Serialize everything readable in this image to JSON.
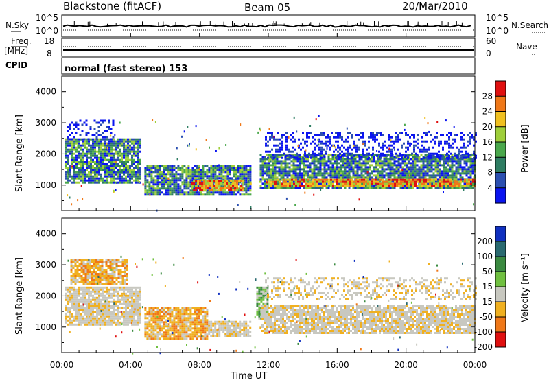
{
  "header": {
    "station": "Blackstone (fitACF)",
    "beam": "Beam 05",
    "date": "20/Mar/2010"
  },
  "nsky_panel": {
    "left_label": "N.Sky",
    "left_ticks": [
      "10^5",
      "10^0"
    ],
    "right_ticks": [
      "10^5",
      "10^0"
    ],
    "right_label": "N.Search"
  },
  "freq_panel": {
    "left_label_top": "Freq.",
    "left_label_unit": "[MHz]",
    "left_ticks": [
      "18",
      "8"
    ],
    "right_ticks": [
      "60",
      "0"
    ],
    "right_label": "Nave"
  },
  "cpid_panel": {
    "label": "CPID",
    "text": "normal (fast stereo) 153"
  },
  "x_axis": {
    "label": "Time UT",
    "ticks": [
      "00:00",
      "04:00",
      "08:00",
      "12:00",
      "16:00",
      "20:00",
      "00:00"
    ]
  },
  "chart_data": [
    {
      "type": "heatmap",
      "name": "power",
      "ylabel": "Slant Range [km]",
      "yticks": [
        "1000",
        "2000",
        "3000",
        "4000"
      ],
      "ylim": [
        180,
        4500
      ],
      "xlim": [
        0,
        24
      ],
      "colorbar": {
        "label": "Power [dB]",
        "ticks": [
          "4",
          "8",
          "12",
          "16",
          "20",
          "24",
          "28"
        ],
        "colors": [
          "#0a14f0",
          "#2b4fb0",
          "#2e7d62",
          "#4aa84c",
          "#9fcf3a",
          "#f0c020",
          "#f07818",
          "#e01010"
        ]
      },
      "regions": [
        {
          "t0": 0.2,
          "t1": 4.6,
          "r0": 1100,
          "r1": 2500,
          "level": "mid"
        },
        {
          "t0": 0.3,
          "t1": 3.0,
          "r0": 2500,
          "r1": 3100,
          "level": "low"
        },
        {
          "t0": 4.8,
          "t1": 11.0,
          "r0": 700,
          "r1": 1650,
          "level": "mid"
        },
        {
          "t0": 7.5,
          "t1": 10.5,
          "r0": 850,
          "r1": 1150,
          "level": "high"
        },
        {
          "t0": 11.5,
          "t1": 24.0,
          "r0": 900,
          "r1": 2000,
          "level": "mid"
        },
        {
          "t0": 12.0,
          "t1": 24.0,
          "r0": 950,
          "r1": 1200,
          "level": "high"
        },
        {
          "t0": 11.8,
          "t1": 24.0,
          "r0": 1900,
          "r1": 2700,
          "level": "low"
        }
      ]
    },
    {
      "type": "heatmap",
      "name": "velocity",
      "ylabel": "Slant Range [km]",
      "yticks": [
        "1000",
        "2000",
        "3000",
        "4000"
      ],
      "ylim": [
        180,
        4500
      ],
      "xlim": [
        0,
        24
      ],
      "colorbar": {
        "label": "Velocity [m s⁻¹]",
        "ticks": [
          "200",
          "100",
          "50",
          "15",
          "-15",
          "-50",
          "-100",
          "-200"
        ],
        "colors": [
          "#1030c0",
          "#2a6a70",
          "#3a8a40",
          "#70c040",
          "#c8c8c0",
          "#f0b020",
          "#f07818",
          "#e01010"
        ]
      },
      "regions": [
        {
          "t0": 0.2,
          "t1": 4.6,
          "r0": 1100,
          "r1": 2300,
          "level": "gray"
        },
        {
          "t0": 0.5,
          "t1": 3.8,
          "r0": 2400,
          "r1": 3200,
          "level": "orange"
        },
        {
          "t0": 4.8,
          "t1": 8.5,
          "r0": 650,
          "r1": 1650,
          "level": "orange"
        },
        {
          "t0": 8.5,
          "t1": 11.0,
          "r0": 700,
          "r1": 1200,
          "level": "gray"
        },
        {
          "t0": 11.3,
          "t1": 11.9,
          "r0": 1300,
          "r1": 2300,
          "level": "green"
        },
        {
          "t0": 11.6,
          "t1": 24.0,
          "r0": 800,
          "r1": 1700,
          "level": "gray"
        },
        {
          "t0": 11.8,
          "t1": 24.0,
          "r0": 1900,
          "r1": 2600,
          "level": "sparse"
        }
      ]
    }
  ]
}
